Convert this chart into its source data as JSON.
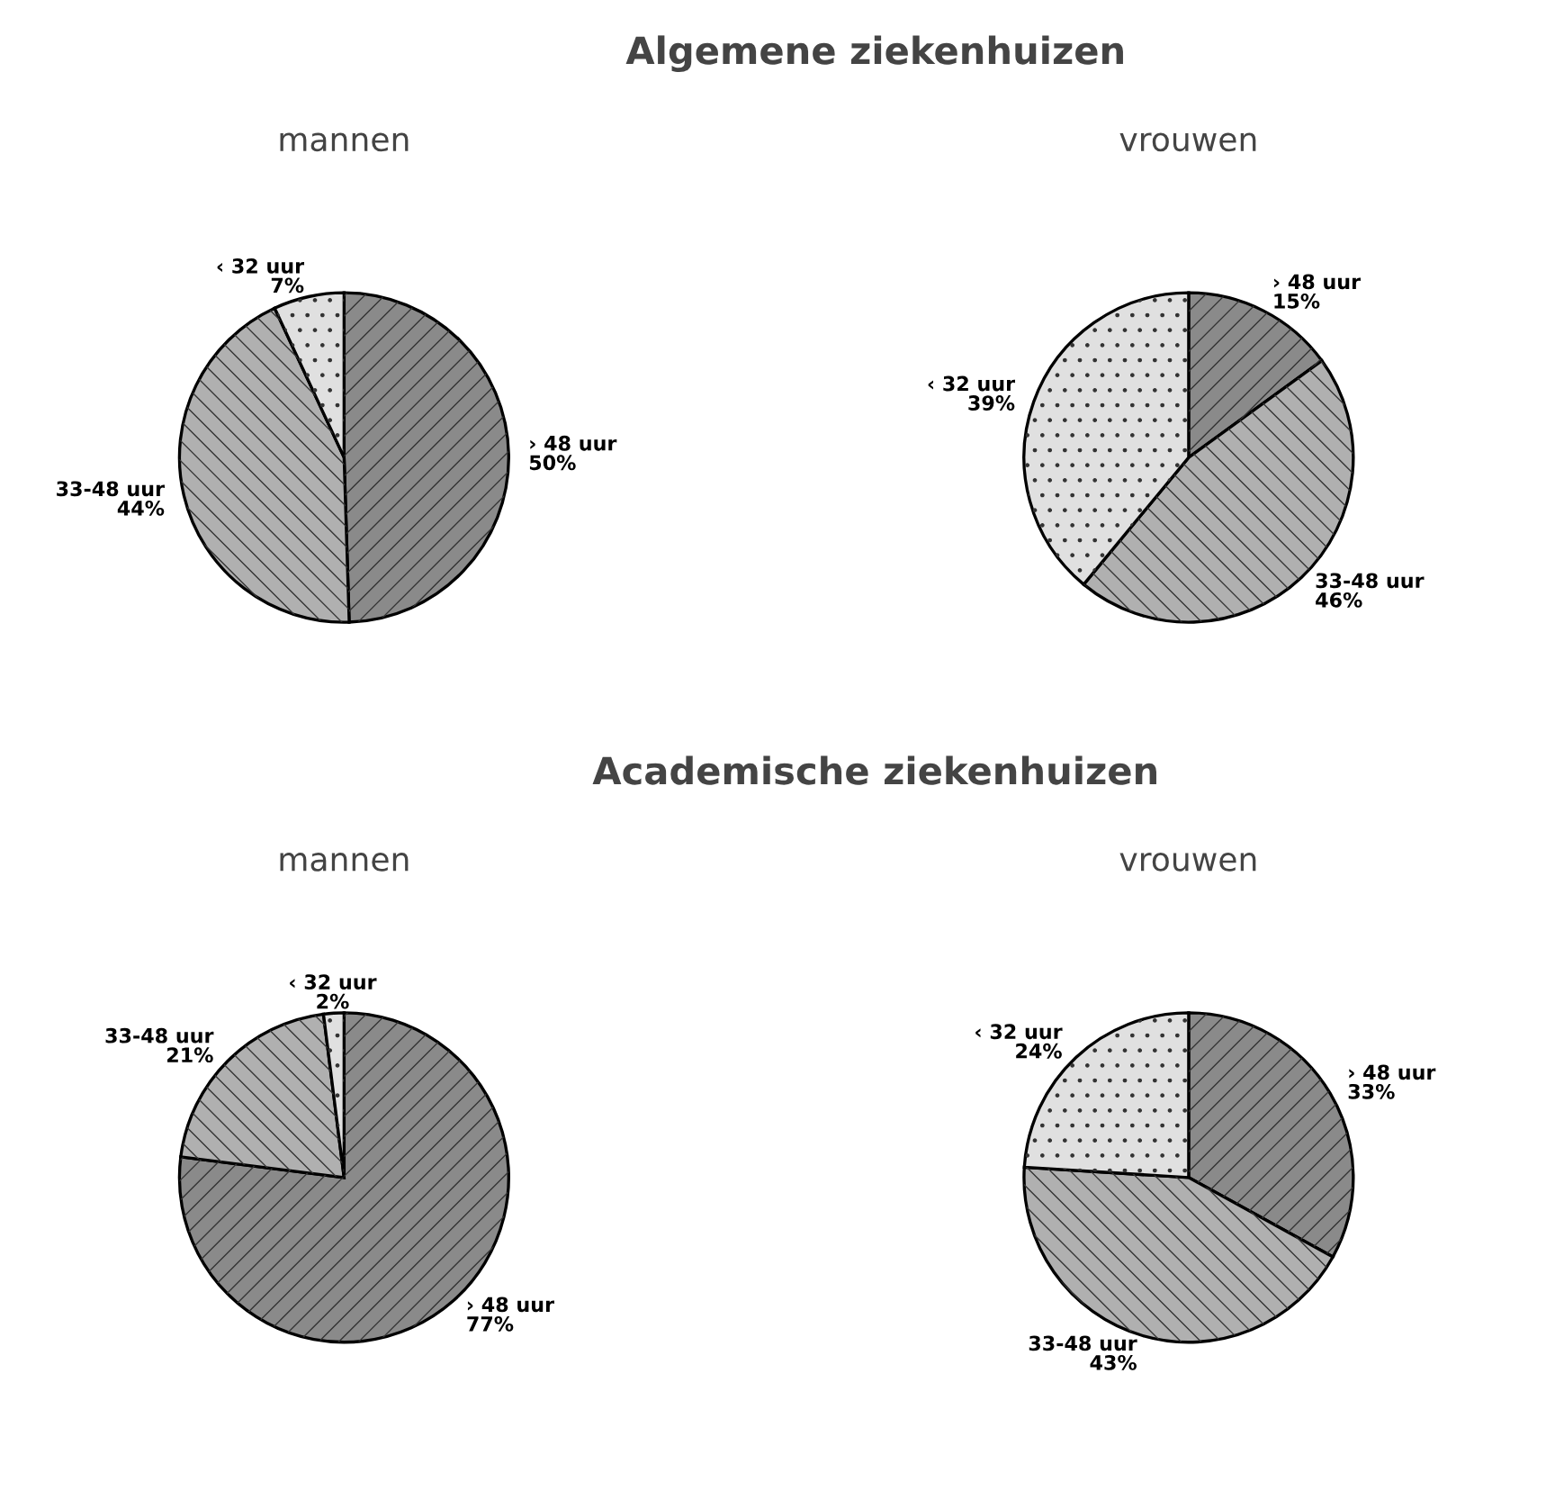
{
  "chart_data": [
    {
      "type": "pie",
      "title": "Algemene ziekenhuizen",
      "subtitle": "mannen",
      "categories": [
        "› 48 uur",
        "33-48 uur",
        "‹ 32 uur"
      ],
      "values": [
        50,
        44,
        7
      ],
      "value_labels": [
        "50%",
        "44%",
        "7%"
      ],
      "colors": [
        "#8a8a8a",
        "#b0b0b0",
        "#e0e0e0"
      ]
    },
    {
      "type": "pie",
      "subtitle": "vrouwen",
      "categories": [
        "› 48 uur",
        "33-48 uur",
        "‹ 32 uur"
      ],
      "values": [
        15,
        46,
        39
      ],
      "value_labels": [
        "15%",
        "46%",
        "39%"
      ],
      "colors": [
        "#8a8a8a",
        "#b0b0b0",
        "#e0e0e0"
      ]
    },
    {
      "type": "pie",
      "title": "Academische ziekenhuizen",
      "subtitle": "mannen",
      "categories": [
        "› 48 uur",
        "33-48 uur",
        "‹ 32 uur"
      ],
      "values": [
        77,
        21,
        2
      ],
      "value_labels": [
        "77%",
        "21%",
        "2%"
      ],
      "colors": [
        "#8a8a8a",
        "#b0b0b0",
        "#e0e0e0"
      ]
    },
    {
      "type": "pie",
      "subtitle": "vrouwen",
      "categories": [
        "› 48 uur",
        "33-48 uur",
        "‹ 32 uur"
      ],
      "values": [
        33,
        43,
        24
      ],
      "value_labels": [
        "33%",
        "43%",
        "24%"
      ],
      "colors": [
        "#8a8a8a",
        "#b0b0b0",
        "#e0e0e0"
      ]
    }
  ]
}
